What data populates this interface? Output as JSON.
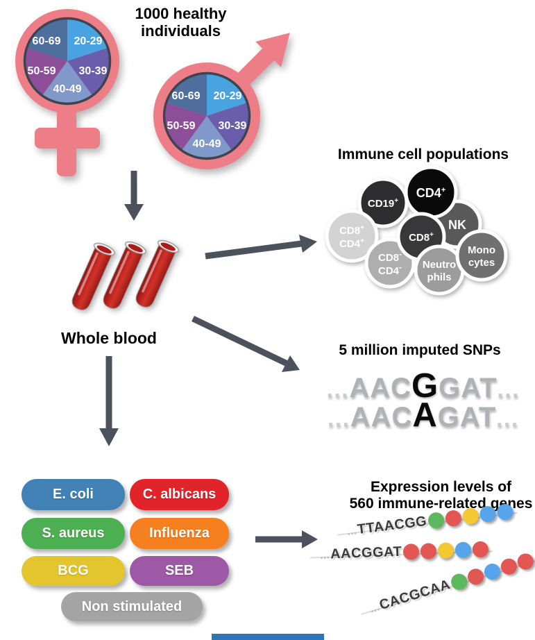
{
  "header": {
    "title_line1": "1000 healthy",
    "title_line2": "individuals"
  },
  "cohort": {
    "symbol_color": "#ed7d87",
    "age_pie": {
      "type": "pie",
      "labels": [
        "20-29",
        "30-39",
        "40-49",
        "50-59",
        "60-69"
      ],
      "values": [
        20,
        20,
        20,
        20,
        20
      ],
      "colors": [
        "#49a3e1",
        "#6a5dac",
        "#8098ca",
        "#8d4e99",
        "#4e6f9e"
      ],
      "ring_color": "#3e444e"
    }
  },
  "whole_blood": {
    "label": "Whole blood",
    "tube_color": "#b92521",
    "rim_color": "#f4f4f4"
  },
  "immune_panel": {
    "title": "Immune cell populations",
    "cells": [
      {
        "id": "nk",
        "line1": "NK",
        "line1_sup": "",
        "color": "#59595b"
      },
      {
        "id": "cd19",
        "line1": "CD19",
        "line1_sup": "+",
        "color": "#2d2d2f"
      },
      {
        "id": "cd4",
        "line1": "CD4",
        "line1_sup": "+",
        "color": "#0a0a0a"
      },
      {
        "id": "cd8-cd4-double-pos",
        "line1": "CD8",
        "line1_sup": "+",
        "line2": "CD4",
        "line2_sup": "+",
        "color": "#d3d3d3"
      },
      {
        "id": "cd8-cd4-double-neg",
        "line1": "CD8",
        "line1_sup": "-",
        "line2": "CD4",
        "line2_sup": "-",
        "color": "#aeaeae"
      },
      {
        "id": "cd8",
        "line1": "CD8",
        "line1_sup": "+",
        "color": "#38383a"
      },
      {
        "id": "neutrophils",
        "line1": "Neutro",
        "line1_sup": "",
        "line2": "phils",
        "line2_sup": "",
        "color": "#9c9c9c"
      },
      {
        "id": "monocytes",
        "line1": "Mono",
        "line1_sup": "",
        "line2": "cytes",
        "line2_sup": "",
        "color": "#707070"
      }
    ]
  },
  "snp_panel": {
    "title": "5 million imputed SNPs",
    "rows": [
      {
        "pre_dots": "...",
        "prefix": "AAC",
        "variant": "G",
        "suffix": "GAT",
        "post_dots": "..."
      },
      {
        "pre_dots": "...",
        "prefix": "AAC",
        "variant": "A",
        "suffix": "GAT",
        "post_dots": "..."
      }
    ]
  },
  "stimuli_panel": {
    "pills": [
      {
        "label": "E. coli",
        "color": "#4181b5"
      },
      {
        "label": "C. albicans",
        "color": "#e1242a"
      },
      {
        "label": "S. aureus",
        "color": "#4cb052"
      },
      {
        "label": "Influenza",
        "color": "#f6801f"
      },
      {
        "label": "BCG",
        "color": "#e2c52f"
      },
      {
        "label": "SEB",
        "color": "#9d58a6"
      },
      {
        "label": "Non stimulated",
        "color": "#a4a4a4"
      }
    ]
  },
  "expression_panel": {
    "title_line1": "Expression levels of",
    "title_line2": "560 immune-related genes",
    "palette": {
      "green": "#5cb85c",
      "red": "#e25753",
      "yellow": "#f3c832",
      "blue": "#57a4ea"
    },
    "rows": [
      {
        "pre_dots": "...",
        "seq": "TTAACGG",
        "dots": [
          "green",
          "red",
          "yellow",
          "blue",
          "blue"
        ]
      },
      {
        "pre_dots": "...",
        "seq": "AACGGAT",
        "dots": [
          "red",
          "red",
          "yellow",
          "blue",
          "red"
        ]
      },
      {
        "pre_dots": "...",
        "seq": "CACGCAA",
        "dots": [
          "green",
          "red",
          "blue",
          "red",
          "red"
        ]
      }
    ]
  },
  "arrow_color": "#4c525b",
  "bottom_bar_color": "#2e74b8"
}
